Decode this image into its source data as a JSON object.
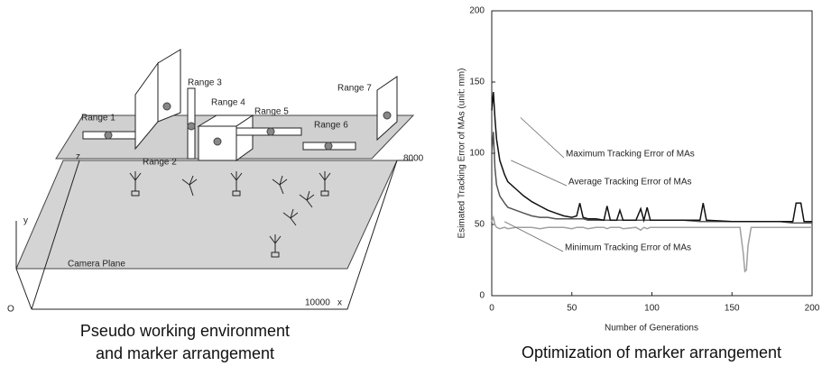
{
  "diagram": {
    "labels": {
      "range1": "Range 1",
      "range2": "Range 2",
      "range3": "Range 3",
      "range4": "Range 4",
      "range5": "Range 5",
      "range6": "Range 6",
      "range7": "Range 7",
      "camera_plane": "Camera Plane",
      "depth": "8000",
      "width": "10000",
      "x_axis": "x",
      "y_axis": "y",
      "z_axis": "z",
      "origin": "O"
    },
    "caption": [
      "Pseudo working environment",
      "and marker arrangement"
    ]
  },
  "chart_data": {
    "type": "line",
    "caption": "Optimization of marker arrangement",
    "x_label": "Number of Generations",
    "y_label": "Esimated Tracking Error of MAs (unit: mm)",
    "x": [
      0,
      1,
      2,
      3,
      5,
      8,
      10,
      15,
      20,
      25,
      30,
      35,
      40,
      45,
      50,
      53,
      55,
      57,
      60,
      65,
      70,
      72,
      74,
      78,
      80,
      82,
      90,
      93,
      95,
      97,
      99,
      110,
      120,
      130,
      132,
      134,
      150,
      155,
      157,
      158,
      159,
      160,
      162,
      170,
      180,
      188,
      190,
      193,
      195,
      200
    ],
    "series": [
      {
        "name": "Maximum Tracking Error of MAs",
        "color": "#111111",
        "values": [
          130,
          143,
          125,
          110,
          95,
          85,
          80,
          75,
          70,
          66,
          63,
          60,
          58,
          56,
          55,
          56,
          65,
          55,
          54,
          54,
          53,
          63,
          53,
          53,
          60,
          53,
          53,
          61,
          53,
          62,
          53,
          53,
          53,
          53,
          65,
          53,
          52,
          52,
          52,
          52,
          52,
          52,
          52,
          52,
          52,
          52,
          65,
          65,
          52,
          52
        ]
      },
      {
        "name": "Average Tracking Error of MAs",
        "color": "#555555",
        "values": [
          100,
          115,
          90,
          78,
          70,
          65,
          62,
          60,
          58,
          56,
          55,
          55,
          54,
          54,
          54,
          54,
          54,
          54,
          53,
          53,
          53,
          53,
          53,
          53,
          53,
          53,
          53,
          53,
          53,
          53,
          53,
          53,
          53,
          52,
          52,
          52,
          52,
          52,
          52,
          52,
          52,
          52,
          52,
          52,
          52,
          51,
          51,
          51,
          51,
          51
        ]
      },
      {
        "name": "Minimum Tracking Error of MAs",
        "color": "#a0a0a0",
        "values": [
          52,
          55,
          50,
          48,
          47,
          48,
          47,
          48,
          48,
          48,
          47,
          48,
          48,
          48,
          47,
          48,
          48,
          48,
          47,
          48,
          48,
          47,
          48,
          48,
          48,
          47,
          48,
          46,
          48,
          47,
          48,
          48,
          48,
          48,
          48,
          48,
          48,
          48,
          30,
          17,
          18,
          35,
          48,
          48,
          48,
          48,
          48,
          48,
          48,
          48
        ]
      }
    ],
    "xlim": [
      0,
      200
    ],
    "ylim": [
      0,
      200
    ],
    "xticks": [
      0,
      50,
      100,
      150,
      200
    ],
    "yticks": [
      0,
      50,
      100,
      150,
      200
    ],
    "grid": false
  }
}
